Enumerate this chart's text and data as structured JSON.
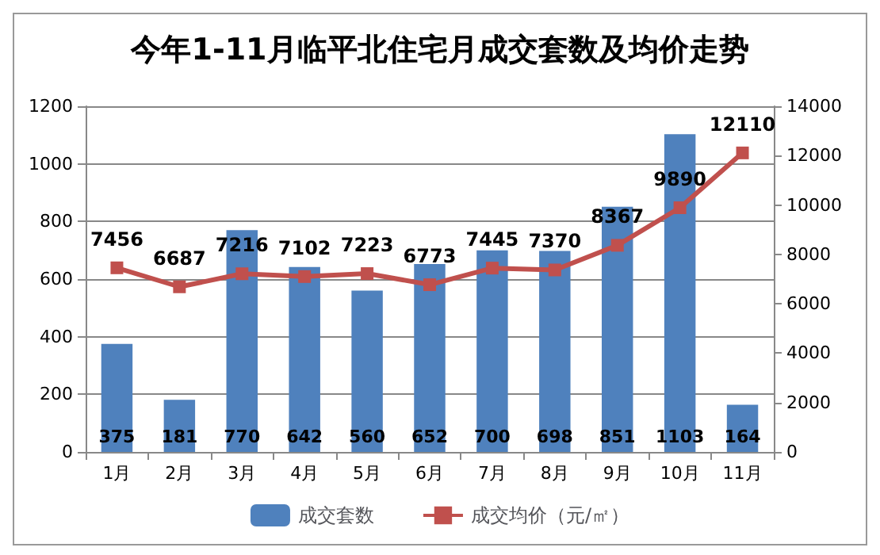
{
  "chart_data": {
    "type": "bar",
    "title": "今年1-11月临平北住宅月成交套数及均价走势",
    "categories": [
      "1月",
      "2月",
      "3月",
      "4月",
      "5月",
      "6月",
      "7月",
      "8月",
      "9月",
      "10月",
      "11月"
    ],
    "series": [
      {
        "name": "成交套数",
        "color": "#4f81bd",
        "values": [
          375,
          181,
          770,
          642,
          560,
          652,
          700,
          698,
          851,
          1103,
          164
        ]
      },
      {
        "name": "成交均价（元/㎡）",
        "type": "line",
        "axis": "y2",
        "color": "#c0504d",
        "values": [
          7456,
          6687,
          7216,
          7102,
          7223,
          6773,
          7445,
          7370,
          8367,
          9890,
          12110
        ]
      }
    ],
    "ylim": [
      0,
      1200
    ],
    "yticks": [
      0,
      200,
      400,
      600,
      800,
      1000,
      1200
    ],
    "y2lim": [
      0,
      14000
    ],
    "y2ticks": [
      0,
      2000,
      4000,
      6000,
      8000,
      10000,
      12000,
      14000
    ],
    "data_labels": true,
    "grid": "y",
    "legend": "bottom",
    "marker": "square",
    "line_style": "solid"
  }
}
